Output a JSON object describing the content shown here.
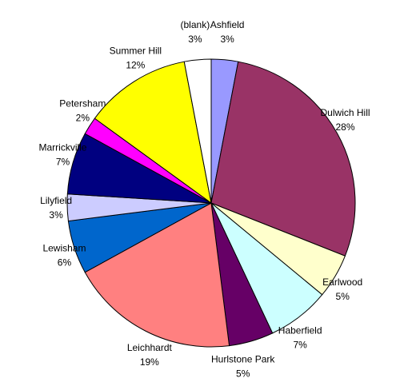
{
  "chart_data": {
    "type": "pie",
    "categories": [
      "Ashfield",
      "Dulwich Hill",
      "Earlwood",
      "Haberfield",
      "Hurlstone Park",
      "Leichhardt",
      "Lewisham",
      "Lilyfield",
      "Marrickville",
      "Petersham",
      "Summer Hill",
      "(blank)"
    ],
    "values": [
      3,
      28,
      5,
      7,
      5,
      19,
      6,
      3,
      7,
      2,
      12,
      3
    ],
    "value_labels": [
      "3%",
      "28%",
      "5%",
      "7%",
      "5%",
      "19%",
      "6%",
      "3%",
      "7%",
      "2%",
      "12%",
      "3%"
    ],
    "colors": [
      "#9999ff",
      "#993366",
      "#ffffcc",
      "#ccffff",
      "#660066",
      "#ff8080",
      "#0066cc",
      "#ccccff",
      "#000080",
      "#ff00ff",
      "#ffff00",
      "#ffffff"
    ]
  }
}
